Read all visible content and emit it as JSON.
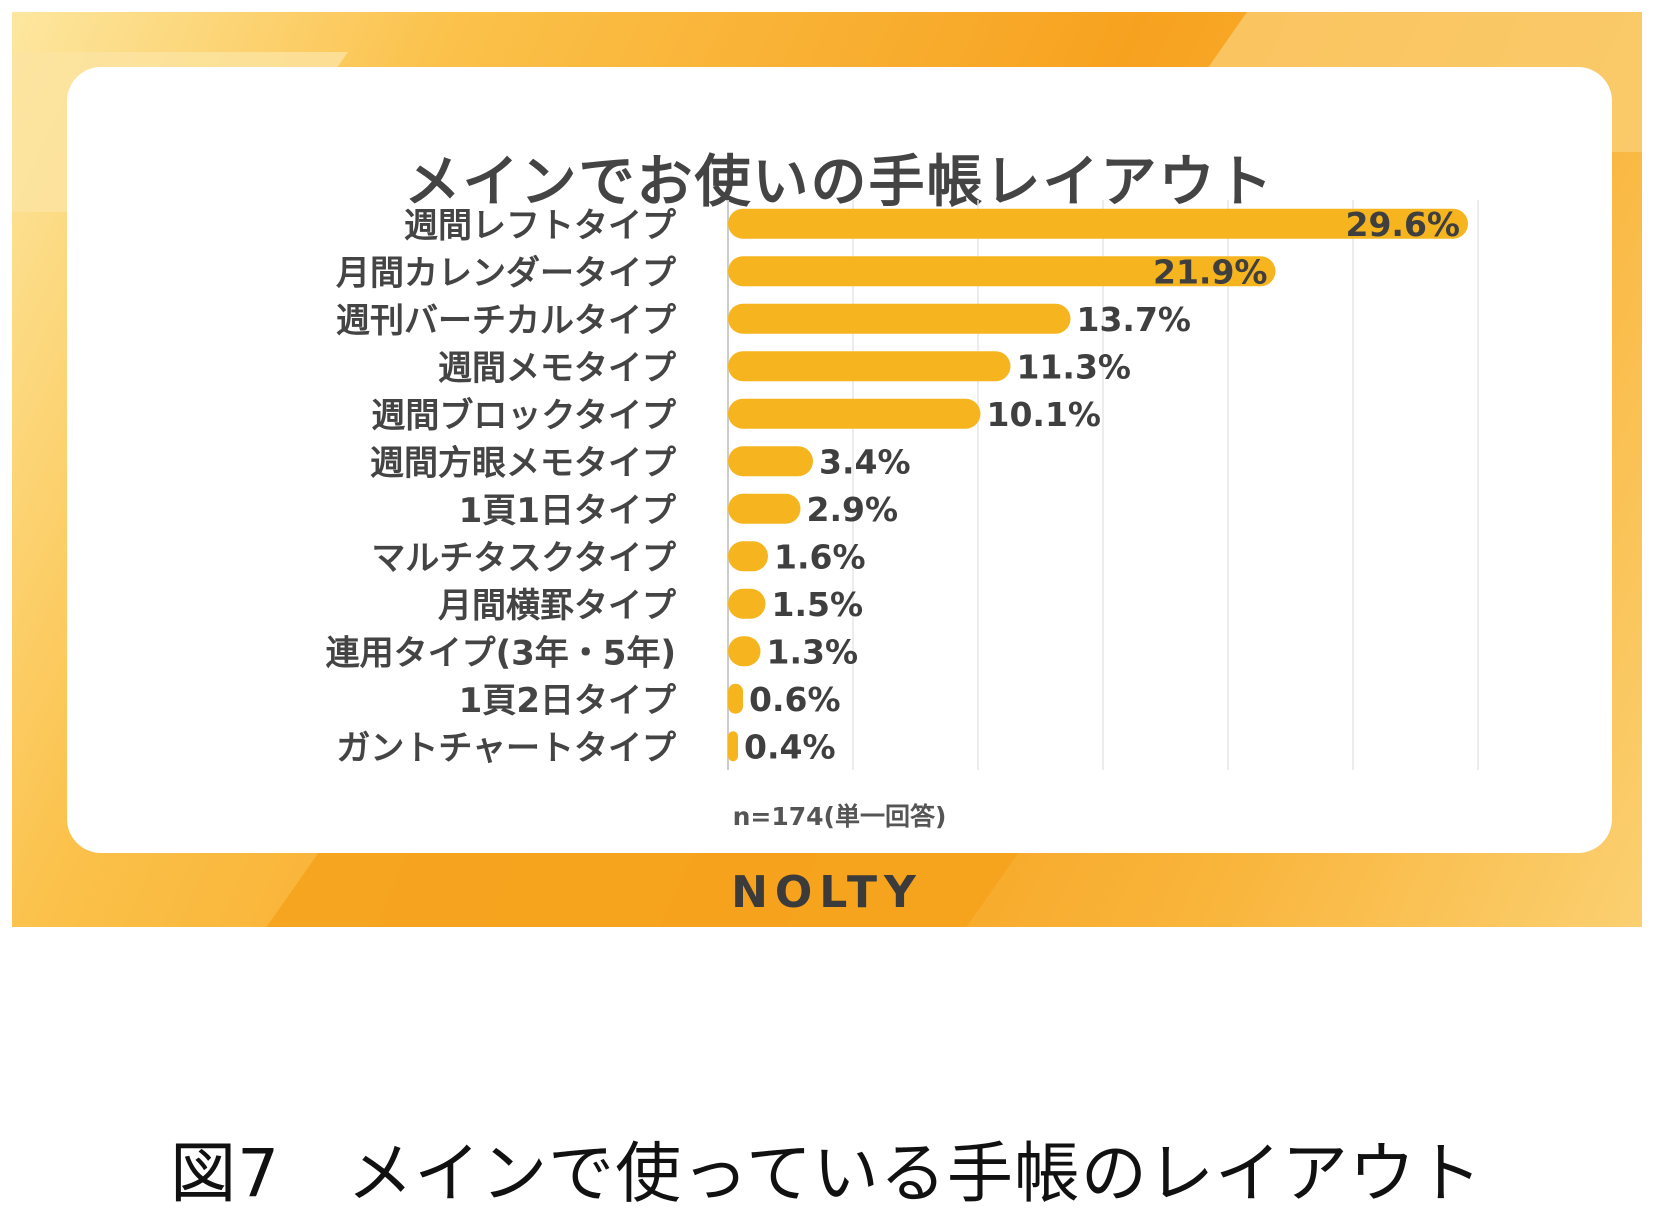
{
  "chart_data": {
    "type": "bar",
    "orientation": "horizontal",
    "title": "メインでお使いの手帳レイアウト",
    "categories": [
      "週間レフトタイプ",
      "月間カレンダータイプ",
      "週刊バーチカルタイプ",
      "週間メモタイプ",
      "週間ブロックタイプ",
      "週間方眼メモタイプ",
      "1頁1日タイプ",
      "マルチタスクタイプ",
      "月間横罫タイプ",
      "連用タイプ(3年・5年)",
      "1頁2日タイプ",
      "ガントチャートタイプ"
    ],
    "values": [
      29.6,
      21.9,
      13.7,
      11.3,
      10.1,
      3.4,
      2.9,
      1.6,
      1.5,
      1.3,
      0.6,
      0.4
    ],
    "value_labels": [
      "29.6%",
      "21.9%",
      "13.7%",
      "11.3%",
      "10.1%",
      "3.4%",
      "2.9%",
      "1.6%",
      "1.5%",
      "1.3%",
      "0.6%",
      "0.4%"
    ],
    "xlim": [
      0,
      30
    ],
    "grid": true,
    "note": "n=174(単一回答)",
    "bar_color": "#f6b51f"
  },
  "brand": {
    "logo": "NOLTY"
  },
  "caption": "図7　メインで使っている手帳のレイアウト"
}
